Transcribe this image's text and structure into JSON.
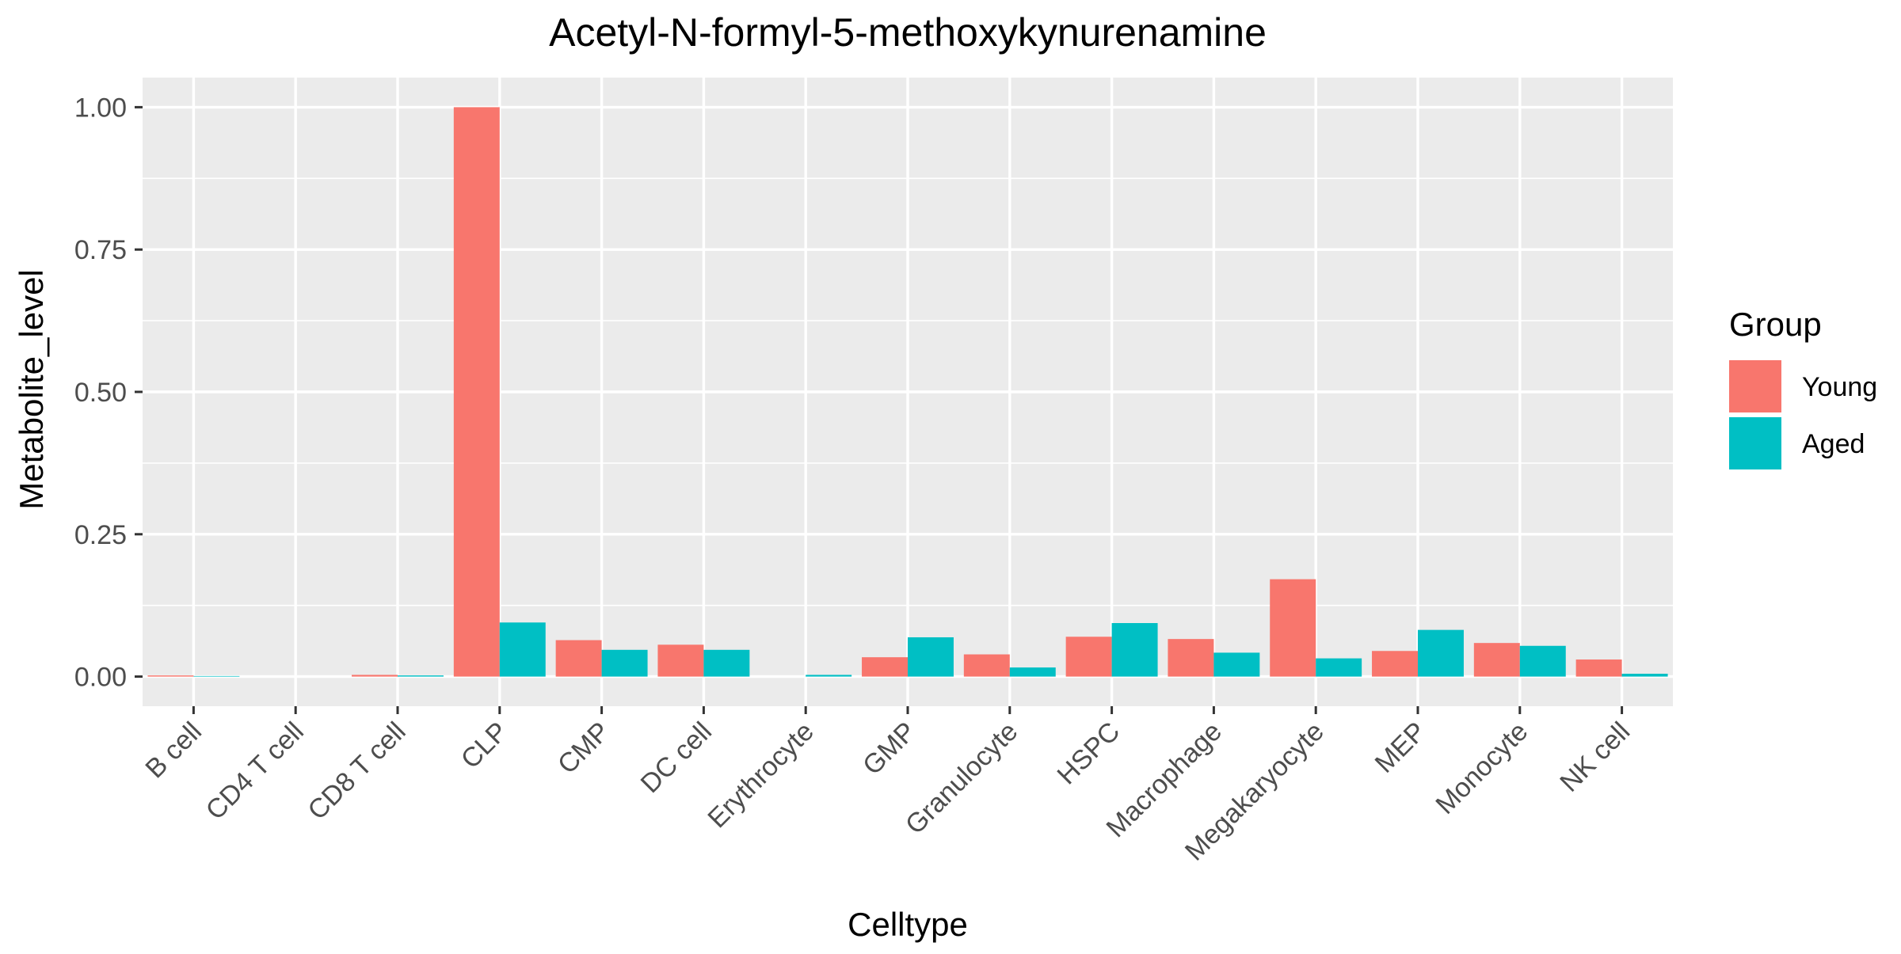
{
  "chart_data": {
    "type": "bar",
    "title": "Acetyl-N-formyl-5-methoxykynurenamine",
    "xlabel": "Celltype",
    "ylabel": "Metabolite_level",
    "categories": [
      "B cell",
      "CD4 T cell",
      "CD8 T cell",
      "CLP",
      "CMP",
      "DC cell",
      "Erythrocyte",
      "GMP",
      "Granulocyte",
      "HSPC",
      "Macrophage",
      "Megakaryocyte",
      "MEP",
      "Monocyte",
      "NK cell"
    ],
    "series": [
      {
        "name": "Young",
        "color": "#F8766D",
        "values": [
          0.002,
          0,
          0.003,
          1.0,
          0.064,
          0.056,
          0,
          0.034,
          0.039,
          0.07,
          0.066,
          0.171,
          0.045,
          0.059,
          0.03
        ]
      },
      {
        "name": "Aged",
        "color": "#00BFC4",
        "values": [
          0.001,
          0,
          0.002,
          0.095,
          0.047,
          0.047,
          0.003,
          0.069,
          0.016,
          0.094,
          0.042,
          0.032,
          0.082,
          0.054,
          0.005
        ]
      }
    ],
    "ylim": [
      -0.052,
      1.052
    ],
    "yticks": [
      0,
      0.25,
      0.5,
      0.75,
      1.0
    ],
    "ytick_labels": [
      "0.00",
      "0.25",
      "0.50",
      "0.75",
      "1.00"
    ],
    "legend": {
      "title": "Group",
      "position": "right"
    },
    "grid": true,
    "panel_background": "#EBEBEB"
  }
}
